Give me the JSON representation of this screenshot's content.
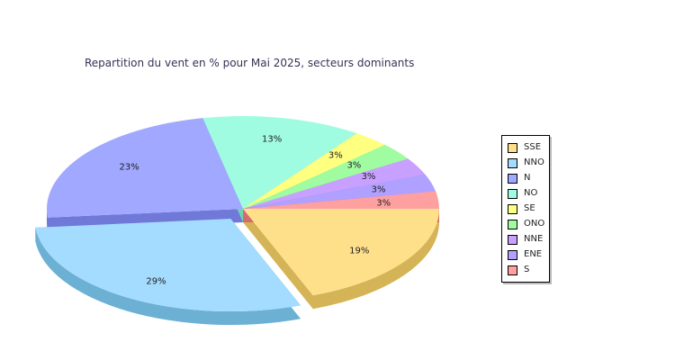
{
  "chart_data": {
    "type": "pie",
    "title": "Repartition du vent en % pour Mai 2025, secteurs dominants",
    "categories": [
      "SSE",
      "NNO",
      "N",
      "NO",
      "SE",
      "ONO",
      "NNE",
      "ENE",
      "S"
    ],
    "values": [
      19,
      29,
      23,
      13,
      3,
      3,
      3,
      3,
      3
    ],
    "labels": [
      "19%",
      "29%",
      "23%",
      "13%",
      "3%",
      "3%",
      "3%",
      "3%",
      "3%"
    ],
    "colors": [
      "#ffe08a",
      "#a3dcff",
      "#a0a8ff",
      "#9ffce0",
      "#ffff80",
      "#a0fca0",
      "#c8a0ff",
      "#b0a0ff",
      "#ffa0a0"
    ],
    "side_colors": [
      "#d4b456",
      "#6cb0d4",
      "#7078d8",
      "#6cd4b0",
      "#d4d44c",
      "#6cd46c",
      "#9c6cd4",
      "#846cd4",
      "#d46c6c"
    ],
    "exploded": "NNO",
    "legend_position": "right",
    "three_d": true
  }
}
